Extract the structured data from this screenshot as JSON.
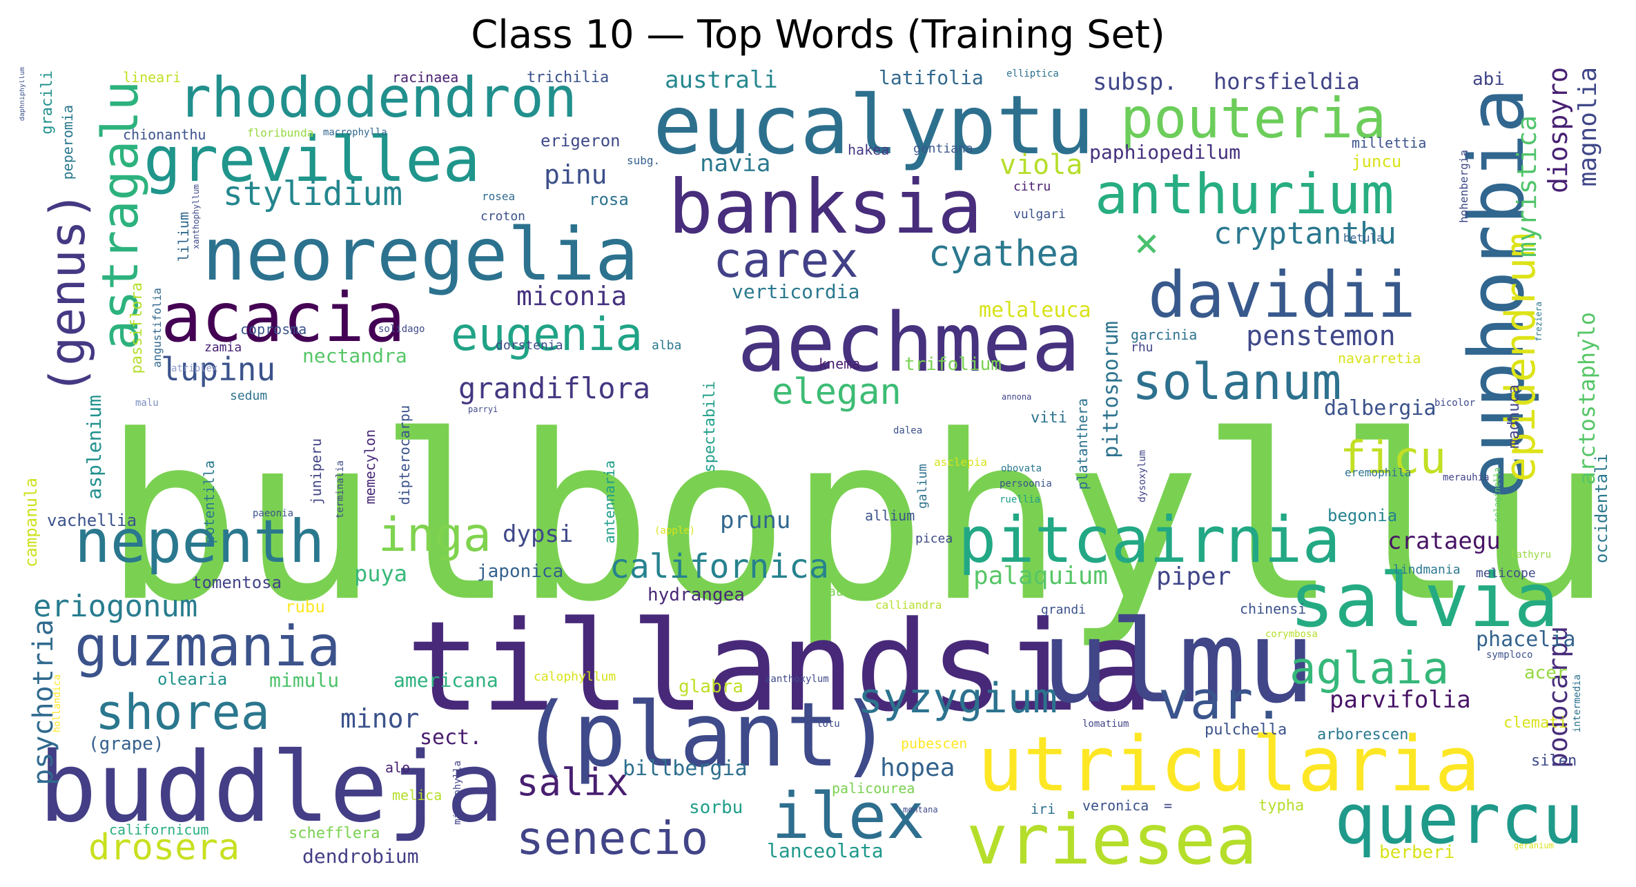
{
  "title": "Class 10 — Top Words (Training Set)",
  "words": [
    {
      "text": "bulbophyllum",
      "color": "#7ad151"
    },
    {
      "text": "tillandsia",
      "color": "#482979"
    },
    {
      "text": "ulmu",
      "color": "#404688"
    },
    {
      "text": "buddleja",
      "color": "#433e85"
    },
    {
      "text": "(plant)",
      "color": "#3e4a89"
    },
    {
      "text": "aechmea",
      "color": "#46327e"
    },
    {
      "text": "eucalyptu",
      "color": "#2d708e"
    },
    {
      "text": "banksia",
      "color": "#472d7b"
    },
    {
      "text": "neoregelia",
      "color": "#2c728e"
    },
    {
      "text": "euphorbia",
      "color": "#31668e"
    },
    {
      "text": "salvia",
      "color": "#25ab82"
    },
    {
      "text": "utricularia",
      "color": "#fde725"
    },
    {
      "text": "vriesea",
      "color": "#b5de2b"
    },
    {
      "text": "quercu",
      "color": "#1f9a8a"
    },
    {
      "text": "pitcairnia",
      "color": "#22a884"
    },
    {
      "text": "ilex",
      "color": "#2e6e8e"
    },
    {
      "text": "acacia",
      "color": "#440154"
    },
    {
      "text": "grevillea",
      "color": "#1f958b"
    },
    {
      "text": "rhododendron",
      "color": "#21908d"
    },
    {
      "text": "davidii",
      "color": "#38598c"
    },
    {
      "text": "nepenth",
      "color": "#2a788e"
    },
    {
      "text": "guzmania",
      "color": "#3b528b"
    },
    {
      "text": "anthurium",
      "color": "#27ad81"
    },
    {
      "text": "pouteria",
      "color": "#6ccd5a"
    },
    {
      "text": "carex",
      "color": "#424086"
    },
    {
      "text": "solanum",
      "color": "#2d718e"
    },
    {
      "text": "var.",
      "color": "#3a548c"
    },
    {
      "text": "senecio",
      "color": "#414487"
    },
    {
      "text": "shorea",
      "color": "#2a778e"
    },
    {
      "text": "(genus)",
      "color": "#443983"
    },
    {
      "text": "astragalu",
      "color": "#2db27d"
    },
    {
      "text": "eugenia",
      "color": "#20a386"
    },
    {
      "text": "inga",
      "color": "#7fd34e"
    },
    {
      "text": "aglaia",
      "color": "#35b779"
    },
    {
      "text": "syzygium",
      "color": "#2c738e"
    },
    {
      "text": "ficu",
      "color": "#c2df23"
    },
    {
      "text": "epidendrum",
      "color": "#dde318"
    },
    {
      "text": "salix",
      "color": "#481f70"
    },
    {
      "text": "drosera",
      "color": "#c8e020"
    },
    {
      "text": "californica",
      "color": "#26828e"
    },
    {
      "text": "stylidium",
      "color": "#24868e"
    },
    {
      "text": "cyathea",
      "color": "#2a788e"
    },
    {
      "text": "elegan",
      "color": "#3dbc74"
    },
    {
      "text": "eriogonum",
      "color": "#287c8e"
    },
    {
      "text": "lupinu",
      "color": "#3b528b"
    },
    {
      "text": "×",
      "color": "#4ac16d"
    },
    {
      "text": "cryptanthu",
      "color": "#2a788e"
    },
    {
      "text": "grandiflora",
      "color": "#453781"
    },
    {
      "text": "psychotria",
      "color": "#306a8e"
    },
    {
      "text": "penstemon",
      "color": "#3f4889"
    },
    {
      "text": "myristica",
      "color": "#50c46a"
    },
    {
      "text": "diospyro",
      "color": "#482173"
    },
    {
      "text": "magnolia",
      "color": "#3f4788"
    },
    {
      "text": "podocarpu",
      "color": "#472c7a"
    },
    {
      "text": "miconia",
      "color": "#46337f"
    },
    {
      "text": "minor",
      "color": "#3b528b"
    },
    {
      "text": "hopea",
      "color": "#33628d"
    },
    {
      "text": "pinu",
      "color": "#3c4f8a"
    },
    {
      "text": "crataegu",
      "color": "#471365"
    },
    {
      "text": "viola",
      "color": "#b5de2b"
    },
    {
      "text": "piper",
      "color": "#404588"
    },
    {
      "text": "palaquium",
      "color": "#56c667"
    },
    {
      "text": "dypsi",
      "color": "#3f4889"
    },
    {
      "text": "parvifolia",
      "color": "#481467"
    },
    {
      "text": "australi",
      "color": "#24878e"
    },
    {
      "text": "prunu",
      "color": "#31678e"
    },
    {
      "text": "navia",
      "color": "#2a788e"
    },
    {
      "text": "subsp.",
      "color": "#3f4788"
    },
    {
      "text": "horsfieldia",
      "color": "#414487"
    },
    {
      "text": "dalbergia",
      "color": "#3b528b"
    },
    {
      "text": "puya",
      "color": "#37b878"
    },
    {
      "text": "phacelia",
      "color": "#33628d"
    },
    {
      "text": "melaleuca",
      "color": "#d8e219"
    },
    {
      "text": "verticordia",
      "color": "#2a788e"
    },
    {
      "text": "nectandra",
      "color": "#56c667"
    },
    {
      "text": "paphiopedilum",
      "color": "#46307e"
    },
    {
      "text": "arctostaphylo",
      "color": "#56c667"
    },
    {
      "text": "pittosporum",
      "color": "#2c728e"
    },
    {
      "text": "mimulu",
      "color": "#4ec36b"
    },
    {
      "text": "americana",
      "color": "#2cb17e"
    },
    {
      "text": "latifolia",
      "color": "#31688e"
    },
    {
      "text": "sect.",
      "color": "#481c6e"
    },
    {
      "text": "trifolium",
      "color": "#7ad151"
    },
    {
      "text": "(grape)",
      "color": "#355f8d"
    },
    {
      "text": "billbergia",
      "color": "#2e6f8e"
    },
    {
      "text": "asplenium",
      "color": "#21908d"
    },
    {
      "text": "japonica",
      "color": "#34618d"
    },
    {
      "text": "hydrangea",
      "color": "#482878"
    },
    {
      "text": "glabra",
      "color": "#bddf26"
    },
    {
      "text": "acer",
      "color": "#95d840"
    },
    {
      "text": "begonia",
      "color": "#25838e"
    },
    {
      "text": "sorbu",
      "color": "#1f9e89"
    },
    {
      "text": "olearia",
      "color": "#21918c"
    },
    {
      "text": "vachellia",
      "color": "#3b528b"
    },
    {
      "text": "lanceolata",
      "color": "#1f988b"
    },
    {
      "text": "dendrobium",
      "color": "#433e85"
    },
    {
      "text": "berberi",
      "color": "#d8e219"
    },
    {
      "text": "campanula",
      "color": "#cde11d"
    },
    {
      "text": "spectabili",
      "color": "#1f9e89"
    },
    {
      "text": "occidentali",
      "color": "#2a788e"
    },
    {
      "text": "rosa",
      "color": "#2c728e"
    },
    {
      "text": "navarretia",
      "color": "#d8e219"
    },
    {
      "text": "madhuca",
      "color": "#414487"
    },
    {
      "text": "pulchella",
      "color": "#3b528b"
    },
    {
      "text": "arborescen",
      "color": "#2a788e"
    },
    {
      "text": "clemati",
      "color": "#d8e219"
    },
    {
      "text": "silen",
      "color": "#3e4a89"
    },
    {
      "text": "tomentosa",
      "color": "#414487"
    },
    {
      "text": "rubu",
      "color": "#fde725"
    },
    {
      "text": "schefflera",
      "color": "#7ad151"
    },
    {
      "text": "californicum",
      "color": "#29af7f"
    },
    {
      "text": "juncu",
      "color": "#d8e219"
    },
    {
      "text": "erigeron",
      "color": "#3e4a89"
    },
    {
      "text": "abi",
      "color": "#414487"
    },
    {
      "text": "millettia",
      "color": "#3b528b"
    },
    {
      "text": "hohenbergia",
      "color": "#3e4a89"
    },
    {
      "text": "trichilia",
      "color": "#3b528b"
    },
    {
      "text": "racinaea",
      "color": "#481f70"
    },
    {
      "text": "lineari",
      "color": "#c2df23"
    },
    {
      "text": "gracili",
      "color": "#21918c"
    },
    {
      "text": "peperomia",
      "color": "#2a788e"
    },
    {
      "text": "chionanthu",
      "color": "#3b528b"
    },
    {
      "text": "floribunda",
      "color": "#95d840"
    },
    {
      "text": "macrophylla",
      "color": "#31688e"
    },
    {
      "text": "hakea",
      "color": "#443983"
    },
    {
      "text": "gentiana",
      "color": "#38588c"
    },
    {
      "text": "citru",
      "color": "#481c6e"
    },
    {
      "text": "vulgari",
      "color": "#3b528b"
    },
    {
      "text": "betula",
      "color": "#33638d"
    },
    {
      "text": "garcinia",
      "color": "#2c728e"
    },
    {
      "text": "rhu",
      "color": "#414487"
    },
    {
      "text": "knema",
      "color": "#481c6e"
    },
    {
      "text": "alba",
      "color": "#2a788e"
    },
    {
      "text": "croton",
      "color": "#3b528b"
    },
    {
      "text": "rosea",
      "color": "#306a8e"
    },
    {
      "text": "subg.",
      "color": "#34618d"
    },
    {
      "text": "lilium",
      "color": "#31688e"
    },
    {
      "text": "coprosma",
      "color": "#3b528b"
    },
    {
      "text": "solidago",
      "color": "#3e4a89"
    },
    {
      "text": "zamia",
      "color": "#482173"
    },
    {
      "text": "dorstenia",
      "color": "#3e4a89"
    },
    {
      "text": "passiflora",
      "color": "#b5de2b"
    },
    {
      "text": "angustifolia",
      "color": "#31688e"
    },
    {
      "text": "xanthophyllum",
      "color": "#3e4a89"
    },
    {
      "text": "atriplex",
      "color": "#8e9bc5"
    },
    {
      "text": "malu",
      "color": "#7c8fbf"
    },
    {
      "text": "sedum",
      "color": "#2c728e"
    },
    {
      "text": "parryi",
      "color": "#3e4a89"
    },
    {
      "text": "dalea",
      "color": "#3b528b"
    },
    {
      "text": "annona",
      "color": "#414487"
    },
    {
      "text": "bicolor",
      "color": "#3e4a89"
    },
    {
      "text": "viti",
      "color": "#2c728e"
    },
    {
      "text": "asclepia",
      "color": "#d8e219"
    },
    {
      "text": "obovata",
      "color": "#2a788e"
    },
    {
      "text": "persoonia",
      "color": "#3b528b"
    },
    {
      "text": "ruellia",
      "color": "#1f9e89"
    },
    {
      "text": "eremophila",
      "color": "#2c728e"
    },
    {
      "text": "merauhia",
      "color": "#414487"
    },
    {
      "text": "selaginella",
      "color": "#5ec962"
    },
    {
      "text": "intermedia",
      "color": "#2c728e"
    },
    {
      "text": "geranium",
      "color": "#d8e219"
    },
    {
      "text": "freziera",
      "color": "#2a788e"
    },
    {
      "text": "elliptica",
      "color": "#2c728e"
    },
    {
      "text": "allium",
      "color": "#3b528b"
    },
    {
      "text": "picea",
      "color": "#3e4a89"
    },
    {
      "text": "aurea",
      "color": "#7ad151"
    },
    {
      "text": "calliandra",
      "color": "#b5de2b"
    },
    {
      "text": "grandi",
      "color": "#3b528b"
    },
    {
      "text": "chinensi",
      "color": "#3b528b"
    },
    {
      "text": "lindmania",
      "color": "#2a788e"
    },
    {
      "text": "melicope",
      "color": "#3e4a89"
    },
    {
      "text": "lathyru",
      "color": "#95d840"
    },
    {
      "text": "corymbosa",
      "color": "#b5de2b"
    },
    {
      "text": "symploco",
      "color": "#3b528b"
    },
    {
      "text": "calophyllum",
      "color": "#d8e219"
    },
    {
      "text": "zanthoxylum",
      "color": "#3e4a89"
    },
    {
      "text": "lotu",
      "color": "#3e4a89"
    },
    {
      "text": "lomatium",
      "color": "#414487"
    },
    {
      "text": "pubescen",
      "color": "#fde725"
    },
    {
      "text": "palicourea",
      "color": "#7ad151"
    },
    {
      "text": "montana",
      "color": "#3e4a89"
    },
    {
      "text": "iri",
      "color": "#2c728e"
    },
    {
      "text": "veronica",
      "color": "#3b528b"
    },
    {
      "text": "=",
      "color": "#414487"
    },
    {
      "text": "typha",
      "color": "#b5de2b"
    },
    {
      "text": "alo",
      "color": "#482173"
    },
    {
      "text": "melica",
      "color": "#b5de2b"
    },
    {
      "text": "microphylla",
      "color": "#414487"
    },
    {
      "text": "hollandica",
      "color": "#fde725"
    },
    {
      "text": "(apple)",
      "color": "#d8e219"
    },
    {
      "text": "potentilla",
      "color": "#2a788e"
    },
    {
      "text": "paeonia",
      "color": "#3b528b"
    },
    {
      "text": "juniperu",
      "color": "#414487"
    },
    {
      "text": "terminalia",
      "color": "#3e4a89"
    },
    {
      "text": "memecylon",
      "color": "#482878"
    },
    {
      "text": "dipterocarpu",
      "color": "#3b528b"
    },
    {
      "text": "antennaria",
      "color": "#1f9e89"
    },
    {
      "text": "platanthera",
      "color": "#2c728e"
    },
    {
      "text": "galium",
      "color": "#2c728e"
    },
    {
      "text": "dysoxylum",
      "color": "#414487"
    },
    {
      "text": "daphniphyllum",
      "color": "#3b528b"
    }
  ]
}
